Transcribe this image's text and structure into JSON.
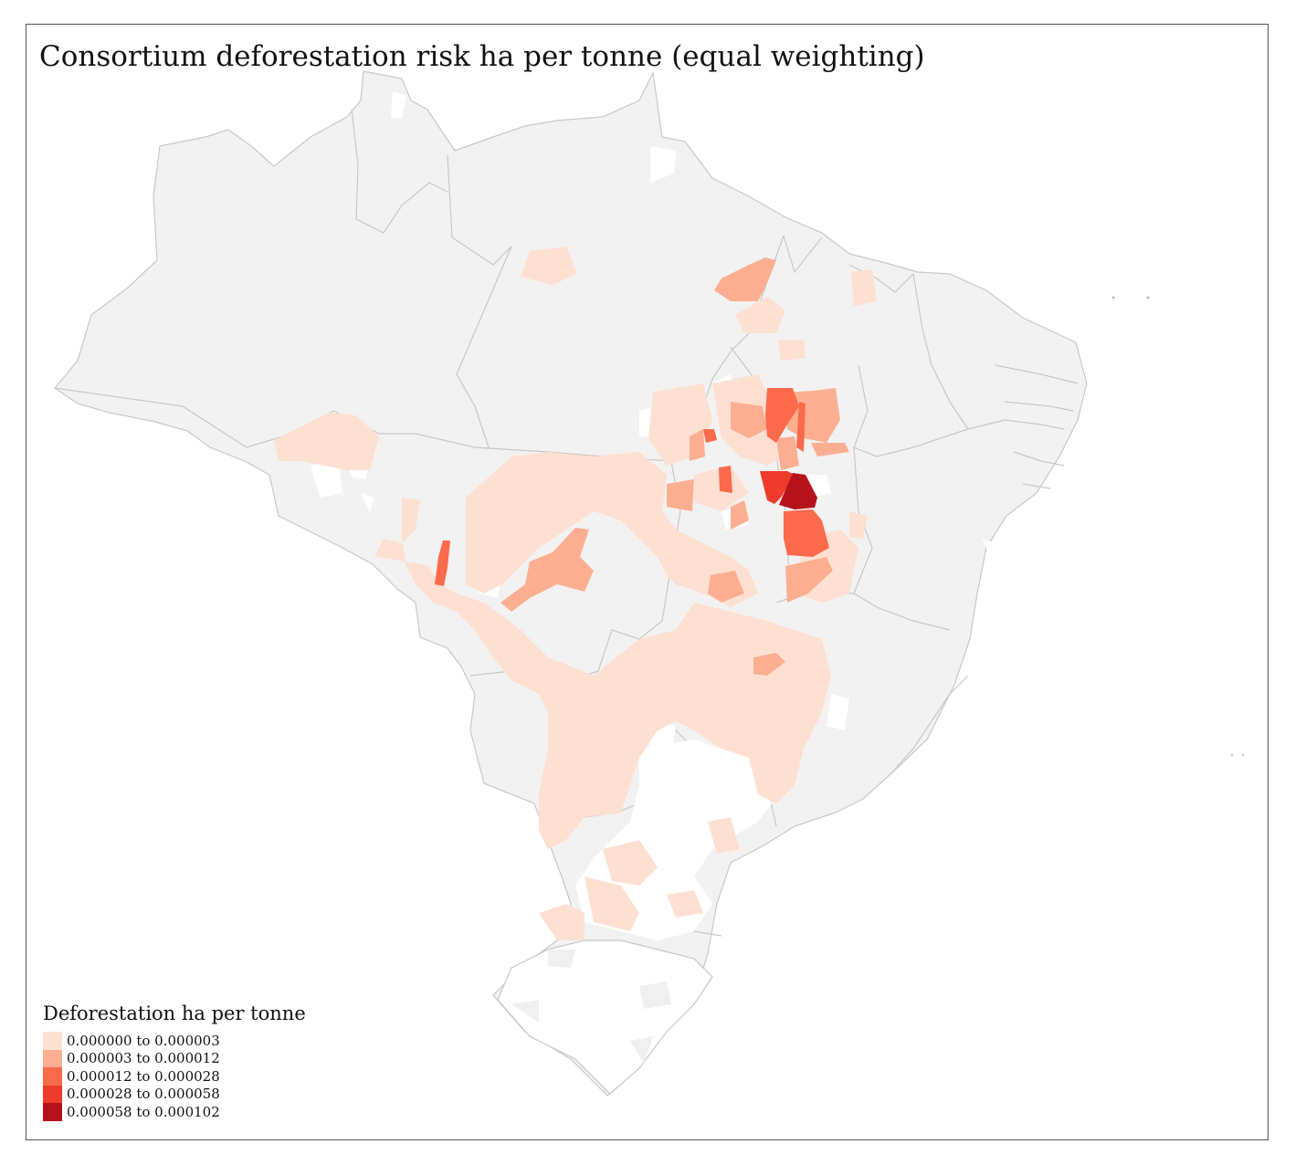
{
  "map": {
    "title": "Consortium deforestation risk ha per tonne (equal weighting)",
    "region": "Brazil",
    "background_fill": "#f2f2f2",
    "no_data_fill": "#ffffff",
    "border_color": "#c8c8c8",
    "legend": {
      "title": "Deforestation ha per tonne",
      "items": [
        {
          "label": "0.000000 to 0.000003",
          "color": "#fee0d2"
        },
        {
          "label": "0.000003 to 0.000012",
          "color": "#fcae91"
        },
        {
          "label": "0.000012 to 0.000028",
          "color": "#fb6a4a"
        },
        {
          "label": "0.000028 to 0.000058",
          "color": "#ef3b2c"
        },
        {
          "label": "0.000058 to 0.000102",
          "color": "#b5121b"
        }
      ]
    }
  }
}
